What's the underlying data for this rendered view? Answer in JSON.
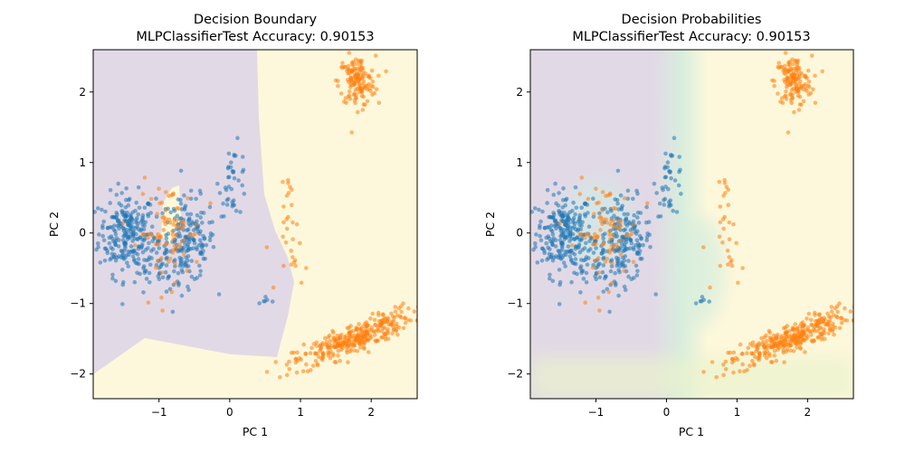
{
  "chart_data": [
    {
      "type": "scatter",
      "title": "Decision Boundary",
      "subtitle": "MLPClassifierTest Accuracy: 0.90153",
      "xlabel": "PC 1",
      "ylabel": "PC 2",
      "xlim": [
        -1.93,
        2.65
      ],
      "ylim": [
        -2.35,
        2.6
      ],
      "xticks": [
        -1,
        0,
        1,
        2
      ],
      "yticks": [
        -2,
        -1,
        0,
        1,
        2
      ],
      "grid": false,
      "background": "hard class regions: class 0 (purple) on left, class 1 (yellow) on right",
      "series": [
        {
          "class": 0,
          "color": "#1f77b4",
          "clusters": [
            {
              "center": [
                -1.45,
                0.0
              ],
              "n": 240,
              "sx": 0.2,
              "sy": 0.28
            },
            {
              "center": [
                -0.6,
                -0.1
              ],
              "n": 170,
              "sx": 0.2,
              "sy": 0.3
            },
            {
              "center": [
                -0.95,
                -0.5
              ],
              "n": 60,
              "sx": 0.25,
              "sy": 0.2
            },
            {
              "center": [
                0.05,
                0.75
              ],
              "n": 40,
              "sx": 0.1,
              "sy": 0.25
            },
            {
              "center": [
                0.45,
                -0.95
              ],
              "n": 6,
              "sx": 0.12,
              "sy": 0.04
            }
          ]
        },
        {
          "class": 1,
          "color": "#ff7f0e",
          "clusters": [
            {
              "center": [
                1.8,
                2.15
              ],
              "n": 140,
              "sx": 0.13,
              "sy": 0.18
            },
            {
              "center": [
                1.75,
                -1.5
              ],
              "n": 320,
              "sx": 0.42,
              "sy": 0.2,
              "rho": 0.85
            },
            {
              "center": [
                -0.85,
                0.0
              ],
              "n": 80,
              "sx": 0.22,
              "sy": 0.35
            },
            {
              "center": [
                0.9,
                -0.25
              ],
              "n": 22,
              "sx": 0.1,
              "sy": 0.3
            },
            {
              "center": [
                0.85,
                0.6
              ],
              "n": 8,
              "sx": 0.05,
              "sy": 0.1
            }
          ]
        }
      ]
    },
    {
      "type": "scatter",
      "title": "Decision Probabilities",
      "subtitle": "MLPClassifierTest Accuracy: 0.90153",
      "xlabel": "PC 1",
      "ylabel": "PC 2",
      "xlim": [
        -1.93,
        2.65
      ],
      "ylim": [
        -2.35,
        2.6
      ],
      "xticks": [
        -1,
        0,
        1,
        2
      ],
      "yticks": [
        -2,
        -1,
        0,
        1,
        2
      ],
      "grid": false,
      "background": "smooth probability gradient from purple (class 0) through teal to yellow (class 1)",
      "series": "same points as first panel"
    }
  ],
  "colors": {
    "class0_point": "#1f77b4",
    "class1_point": "#ff7f0e",
    "class0_region": "#e2d9e6",
    "class1_region": "#fdf8db",
    "transition": "#d8eedd"
  }
}
